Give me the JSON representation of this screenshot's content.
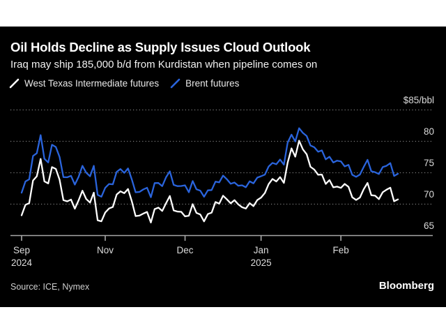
{
  "chart_data": {
    "type": "line",
    "title": "Oil Holds Decline as Supply Issues Cloud Outlook",
    "subtitle": "Iraq may ship 185,000 b/d from Kurdistan when pipeline comes on",
    "y_top_label": "$85/bbl",
    "y_ticks": [
      85,
      80,
      75,
      70,
      65
    ],
    "ylim": [
      65,
      85
    ],
    "grid": "dotted-horizontal",
    "legend_position": "top-left",
    "x_ticks": [
      {
        "label": "Sep",
        "sub": "2024",
        "index": 0
      },
      {
        "label": "Nov",
        "sub": "",
        "index": 22
      },
      {
        "label": "Dec",
        "sub": "",
        "index": 43
      },
      {
        "label": "Jan",
        "sub": "2025",
        "index": 63
      },
      {
        "label": "Feb",
        "sub": "",
        "index": 84
      }
    ],
    "series": [
      {
        "name": "West Texas Intermediate futures",
        "color": "#ffffff",
        "values": [
          68.17,
          69.83,
          70.1,
          73.71,
          74.38,
          77.14,
          73.57,
          73.24,
          75.85,
          75.56,
          73.83,
          70.58,
          70.39,
          70.67,
          69.22,
          70.56,
          72.09,
          70.77,
          70.19,
          71.78,
          67.38,
          67.21,
          68.61,
          69.26,
          69.49,
          71.47,
          71.99,
          71.69,
          72.36,
          70.38,
          68.04,
          68.12,
          68.43,
          68.7,
          67.02,
          69.16,
          69.39,
          68.87,
          70.1,
          71.24,
          68.94,
          68.77,
          68.72,
          68.0,
          68.1,
          69.94,
          68.54,
          68.3,
          67.2,
          68.37,
          68.59,
          70.29,
          70.02,
          71.29,
          70.71,
          70.08,
          70.58,
          69.91,
          69.46,
          69.24,
          70.1,
          69.62,
          70.6,
          70.99,
          71.72,
          73.13,
          73.96,
          73.56,
          74.25,
          73.32,
          76.57,
          78.82,
          77.5,
          80.04,
          78.68,
          77.88,
          75.89,
          75.44,
          74.62,
          74.66,
          73.17,
          73.77,
          72.62,
          72.73,
          72.53,
          73.16,
          72.7,
          71.03,
          70.61,
          71.0,
          72.32,
          73.32,
          71.37,
          71.29,
          70.74,
          71.85,
          72.25,
          72.57,
          70.4,
          70.7
        ]
      },
      {
        "name": "Brent futures",
        "color": "#2a64dc",
        "values": [
          71.77,
          73.56,
          73.9,
          77.62,
          78.05,
          80.93,
          77.18,
          76.58,
          79.4,
          79.04,
          77.46,
          74.25,
          74.22,
          74.45,
          73.06,
          74.29,
          76.04,
          74.96,
          74.38,
          76.05,
          71.42,
          71.12,
          72.55,
          73.16,
          73.1,
          75.08,
          75.53,
          74.92,
          75.63,
          73.87,
          71.83,
          71.89,
          72.28,
          72.56,
          71.04,
          73.3,
          73.31,
          72.81,
          74.23,
          75.17,
          73.01,
          72.81,
          72.83,
          72.94,
          71.83,
          73.62,
          72.31,
          72.09,
          71.12,
          72.14,
          72.19,
          73.52,
          73.41,
          74.49,
          73.91,
          73.19,
          73.39,
          72.88,
          72.94,
          72.63,
          73.58,
          73.26,
          74.17,
          74.39,
          74.64,
          75.93,
          76.51,
          76.3,
          77.05,
          76.23,
          79.76,
          81.01,
          79.92,
          82.03,
          81.29,
          80.79,
          79.29,
          79.0,
          78.29,
          78.5,
          77.08,
          77.49,
          76.58,
          76.87,
          76.76,
          75.96,
          76.2,
          74.61,
          74.29,
          74.66,
          75.87,
          77.0,
          75.18,
          75.02,
          74.74,
          75.84,
          76.04,
          76.48,
          74.43,
          74.78
        ]
      }
    ]
  },
  "footer": {
    "source": "Source: ICE, Nymex",
    "brand": "Bloomberg"
  }
}
